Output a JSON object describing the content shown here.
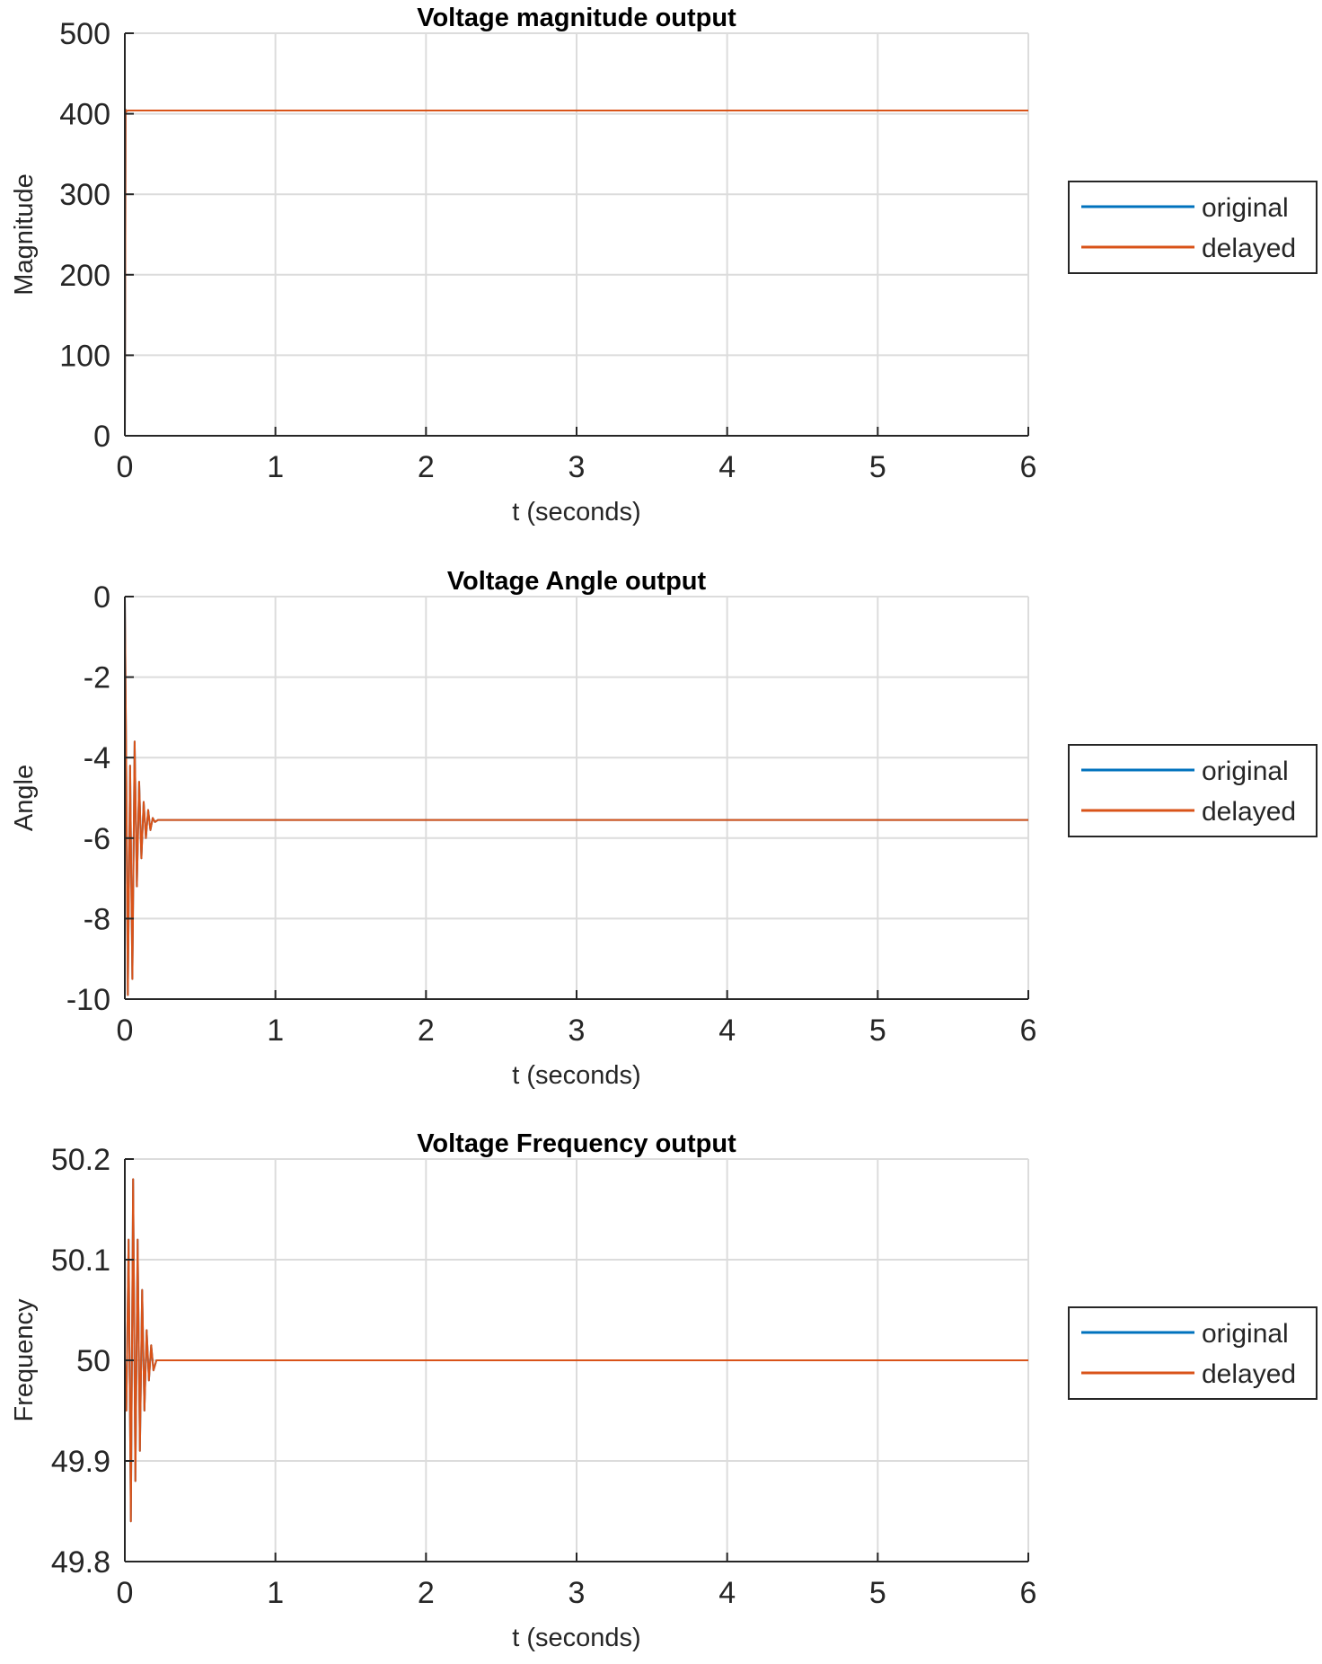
{
  "chart_data": [
    {
      "type": "line",
      "title": "Voltage magnitude output",
      "xlabel": "t (seconds)",
      "ylabel": "Magnitude",
      "xlim": [
        0,
        6
      ],
      "ylim": [
        0,
        500
      ],
      "xticks": [
        "0",
        "1",
        "2",
        "3",
        "4",
        "5",
        "6"
      ],
      "yticks": [
        "0",
        "100",
        "200",
        "300",
        "400",
        "500"
      ],
      "grid": true,
      "legend_placement": "outside-right",
      "series": [
        {
          "name": "original",
          "color": "#0072BD",
          "x": [
            0,
            0.005,
            0.01,
            0.02,
            6
          ],
          "y": [
            0,
            405,
            403,
            404,
            404
          ]
        },
        {
          "name": "delayed",
          "color": "#D95319",
          "x": [
            0,
            0.005,
            0.01,
            0.02,
            6
          ],
          "y": [
            0,
            405,
            403,
            404,
            404
          ]
        }
      ]
    },
    {
      "type": "line",
      "title": "Voltage Angle output",
      "xlabel": "t (seconds)",
      "ylabel": "Angle",
      "xlim": [
        0,
        6
      ],
      "ylim": [
        -10,
        0
      ],
      "xticks": [
        "0",
        "1",
        "2",
        "3",
        "4",
        "5",
        "6"
      ],
      "yticks": [
        "0",
        "-2",
        "-4",
        "-6",
        "-8",
        "-10"
      ],
      "grid": true,
      "legend_placement": "outside-right",
      "series": [
        {
          "name": "original",
          "color": "#0072BD",
          "x": [
            0,
            0.01,
            0.02,
            0.035,
            0.05,
            0.065,
            0.08,
            0.095,
            0.11,
            0.125,
            0.14,
            0.155,
            0.17,
            0.185,
            0.2,
            0.22,
            0.25,
            6
          ],
          "y": [
            0,
            -4.6,
            -9.9,
            -4.2,
            -9.5,
            -3.6,
            -7.2,
            -4.6,
            -6.5,
            -5.1,
            -6.0,
            -5.3,
            -5.8,
            -5.5,
            -5.6,
            -5.55,
            -5.55,
            -5.55
          ]
        },
        {
          "name": "delayed",
          "color": "#D95319",
          "x": [
            0,
            0.01,
            0.02,
            0.035,
            0.05,
            0.065,
            0.08,
            0.095,
            0.11,
            0.125,
            0.14,
            0.155,
            0.17,
            0.185,
            0.2,
            0.22,
            0.25,
            6
          ],
          "y": [
            0,
            -4.6,
            -9.9,
            -4.2,
            -9.5,
            -3.6,
            -7.2,
            -4.6,
            -6.5,
            -5.1,
            -6.0,
            -5.3,
            -5.8,
            -5.5,
            -5.6,
            -5.55,
            -5.55,
            -5.55
          ]
        }
      ]
    },
    {
      "type": "line",
      "title": "Voltage Frequency output",
      "xlabel": "t (seconds)",
      "ylabel": "Frequency",
      "xlim": [
        0,
        6
      ],
      "ylim": [
        49.8,
        50.2
      ],
      "xticks": [
        "0",
        "1",
        "2",
        "3",
        "4",
        "5",
        "6"
      ],
      "yticks": [
        "49.8",
        "49.9",
        "50",
        "50.1",
        "50.2"
      ],
      "grid": true,
      "legend_placement": "outside-right",
      "series": [
        {
          "name": "original",
          "color": "#0072BD",
          "x": [
            0,
            0.01,
            0.025,
            0.04,
            0.055,
            0.07,
            0.085,
            0.1,
            0.115,
            0.13,
            0.145,
            0.16,
            0.175,
            0.19,
            0.21,
            0.25,
            6
          ],
          "y": [
            50,
            49.95,
            50.12,
            49.84,
            50.18,
            49.88,
            50.12,
            49.91,
            50.07,
            49.95,
            50.03,
            49.98,
            50.015,
            49.99,
            50.0,
            50.0,
            50.0
          ]
        },
        {
          "name": "delayed",
          "color": "#D95319",
          "x": [
            0,
            0.01,
            0.025,
            0.04,
            0.055,
            0.07,
            0.085,
            0.1,
            0.115,
            0.13,
            0.145,
            0.16,
            0.175,
            0.19,
            0.21,
            0.25,
            6
          ],
          "y": [
            50,
            49.95,
            50.12,
            49.84,
            50.18,
            49.88,
            50.12,
            49.91,
            50.07,
            49.95,
            50.03,
            49.98,
            50.015,
            49.99,
            50.0,
            50.0,
            50.0
          ]
        }
      ]
    }
  ]
}
